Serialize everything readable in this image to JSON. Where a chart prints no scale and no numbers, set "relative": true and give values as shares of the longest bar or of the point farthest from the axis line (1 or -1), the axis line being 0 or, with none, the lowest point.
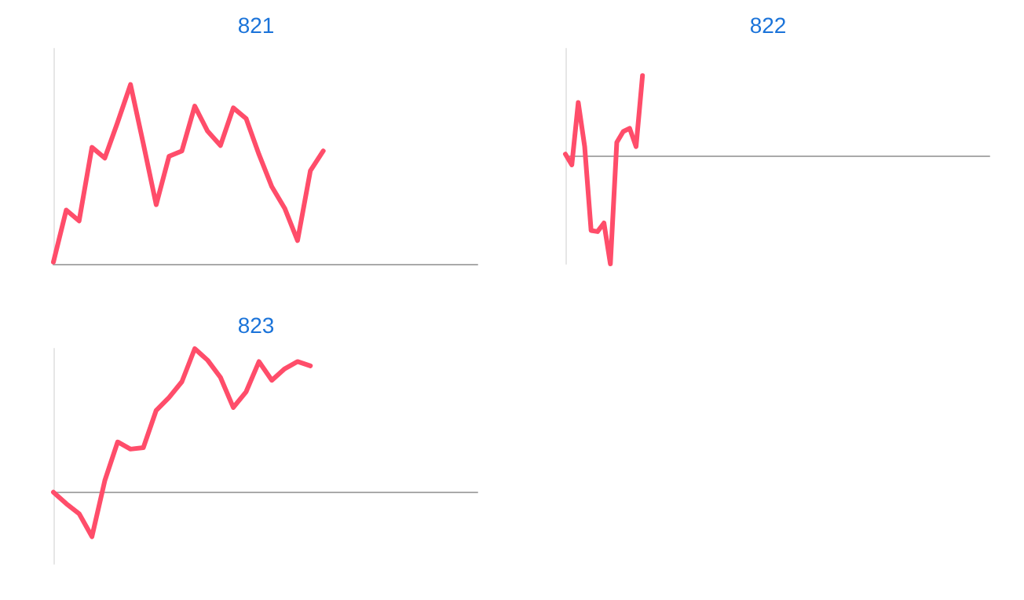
{
  "chart_data": [
    {
      "type": "line",
      "title": "821",
      "relative": true,
      "marker": "none",
      "color": "#ff4d6a",
      "categories": [
        null,
        null,
        null,
        null,
        null,
        null,
        null,
        null,
        null,
        null,
        null,
        null,
        null,
        null,
        null,
        null,
        null,
        null,
        null,
        null,
        null,
        null,
        null,
        null,
        null,
        null,
        null,
        null,
        null,
        null,
        null,
        null,
        null,
        null
      ],
      "values": [
        0.01,
        0.3,
        0.24,
        0.65,
        0.59,
        0.79,
        1,
        0.67,
        0.33,
        0.6,
        0.63,
        0.88,
        0.74,
        0.66,
        0.87,
        0.81,
        0.61,
        0.43,
        0.31,
        0.13,
        0.52,
        0.63,
        null,
        null,
        null,
        null,
        null,
        null,
        null,
        null,
        null,
        null,
        null,
        null
      ]
    },
    {
      "type": "line",
      "title": "822",
      "relative": true,
      "marker": "none",
      "color": "#ff4d6a",
      "categories": [
        null,
        null,
        null,
        null,
        null,
        null,
        null,
        null,
        null,
        null,
        null,
        null,
        null,
        null,
        null,
        null,
        null,
        null,
        null,
        null,
        null,
        null,
        null,
        null,
        null,
        null,
        null,
        null,
        null,
        null,
        null,
        null,
        null,
        null,
        null,
        null,
        null,
        null,
        null,
        null,
        null,
        null,
        null,
        null,
        null,
        null,
        null,
        null,
        null,
        null,
        null,
        null,
        null,
        null,
        null,
        null,
        null,
        null,
        null,
        null,
        null,
        null,
        null,
        null,
        null,
        null,
        null
      ],
      "values": [
        0.02,
        -0.08,
        0.5,
        0.09,
        -0.69,
        -0.7,
        -0.62,
        -1,
        0.13,
        0.23,
        0.26,
        0.09,
        0.75,
        null,
        null,
        null,
        null,
        null,
        null,
        null,
        null,
        null,
        null,
        null,
        null,
        null,
        null,
        null,
        null,
        null,
        null,
        null,
        null,
        null,
        null,
        null,
        null,
        null,
        null,
        null,
        null,
        null,
        null,
        null,
        null,
        null,
        null,
        null,
        null,
        null,
        null,
        null,
        null,
        null,
        null,
        null,
        null,
        null,
        null,
        null,
        null,
        null,
        null,
        null,
        null,
        null,
        null
      ]
    },
    {
      "type": "line",
      "title": "823",
      "relative": true,
      "marker": "none",
      "color": "#ff4d6a",
      "categories": [
        null,
        null,
        null,
        null,
        null,
        null,
        null,
        null,
        null,
        null,
        null,
        null,
        null,
        null,
        null,
        null,
        null,
        null,
        null,
        null,
        null,
        null,
        null,
        null,
        null,
        null,
        null,
        null,
        null,
        null,
        null,
        null,
        null,
        null
      ],
      "values": [
        0,
        -0.08,
        -0.15,
        -0.31,
        0.08,
        0.35,
        0.3,
        0.31,
        0.57,
        0.66,
        0.77,
        1,
        0.92,
        0.8,
        0.59,
        0.7,
        0.91,
        0.78,
        0.86,
        0.91,
        0.88,
        null,
        null,
        null,
        null,
        null,
        null,
        null,
        null,
        null,
        null,
        null,
        null,
        null
      ]
    }
  ]
}
